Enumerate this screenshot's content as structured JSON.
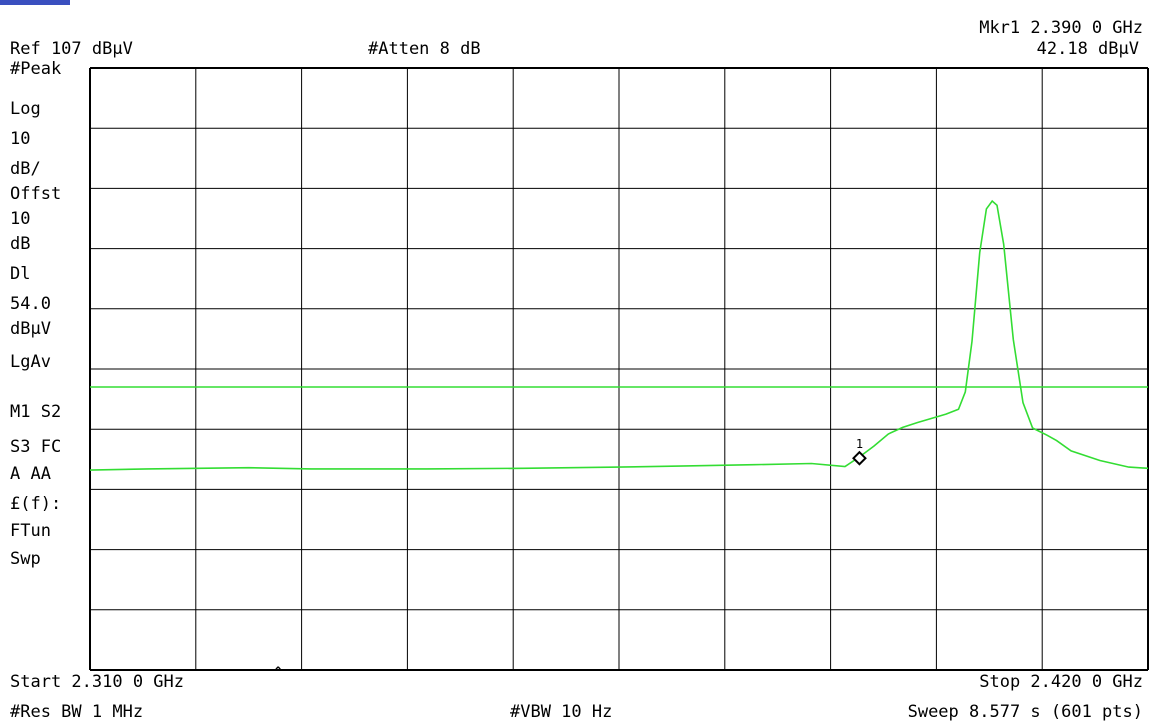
{
  "header": {
    "marker_label": "Mkr1",
    "marker_freq": "2.390 0 GHz",
    "marker_level": "42.18 dBμV",
    "ref_level": "Ref 107 dBμV",
    "atten": "#Atten 8 dB"
  },
  "sidebar": [
    "#Peak",
    "Log",
    "10",
    "dB/",
    "Offst",
    "10",
    "dB",
    "Dl",
    "54.0",
    "dBμV",
    "LgAv",
    "",
    "M1 S2",
    "S3 FC",
    "A  AA",
    "£(f):",
    "FTun",
    "Swp"
  ],
  "footer": {
    "start": "Start 2.310 0 GHz",
    "caret": "^",
    "stop": "Stop 2.420 0 GHz",
    "rbw": "#Res BW 1 MHz",
    "vbw": "#VBW 10 Hz",
    "sweep": "Sweep 8.577 s (601 pts)"
  },
  "chart_data": {
    "type": "line",
    "x_unit": "GHz",
    "y_unit": "dBμV",
    "xlim": [
      2.31,
      2.42
    ],
    "ylim": [
      7,
      107
    ],
    "grid": true,
    "grid_divisions": {
      "x": 10,
      "y": 10
    },
    "colors": {
      "trace": "#33dd33",
      "grid": "#000000",
      "display_line": "#33dd33"
    },
    "display_line": 54.0,
    "marker": {
      "label": "1",
      "x": 2.39,
      "y": 42.18
    },
    "series": [
      {
        "x": [
          2.31,
          2.316,
          2.3265,
          2.333,
          2.345,
          2.355,
          2.365,
          2.372,
          2.379,
          2.385,
          2.3885,
          2.39,
          2.3915,
          2.393,
          2.3945,
          2.396,
          2.3975,
          2.399,
          2.4003,
          2.401,
          2.4017,
          2.4025,
          2.4032,
          2.4038,
          2.4043,
          2.405,
          2.406,
          2.407,
          2.408,
          2.4095,
          2.4105,
          2.412,
          2.415,
          2.418,
          2.42
        ],
        "y": [
          40.2,
          40.4,
          40.6,
          40.4,
          40.4,
          40.5,
          40.7,
          40.9,
          41.1,
          41.3,
          40.8,
          42.4,
          44.2,
          46.2,
          47.3,
          48.1,
          48.8,
          49.5,
          50.3,
          53.2,
          61.6,
          76.3,
          83.6,
          84.9,
          84.2,
          77.7,
          61.9,
          51.4,
          47.2,
          46.0,
          45.1,
          43.4,
          41.8,
          40.7,
          40.5
        ]
      }
    ]
  }
}
